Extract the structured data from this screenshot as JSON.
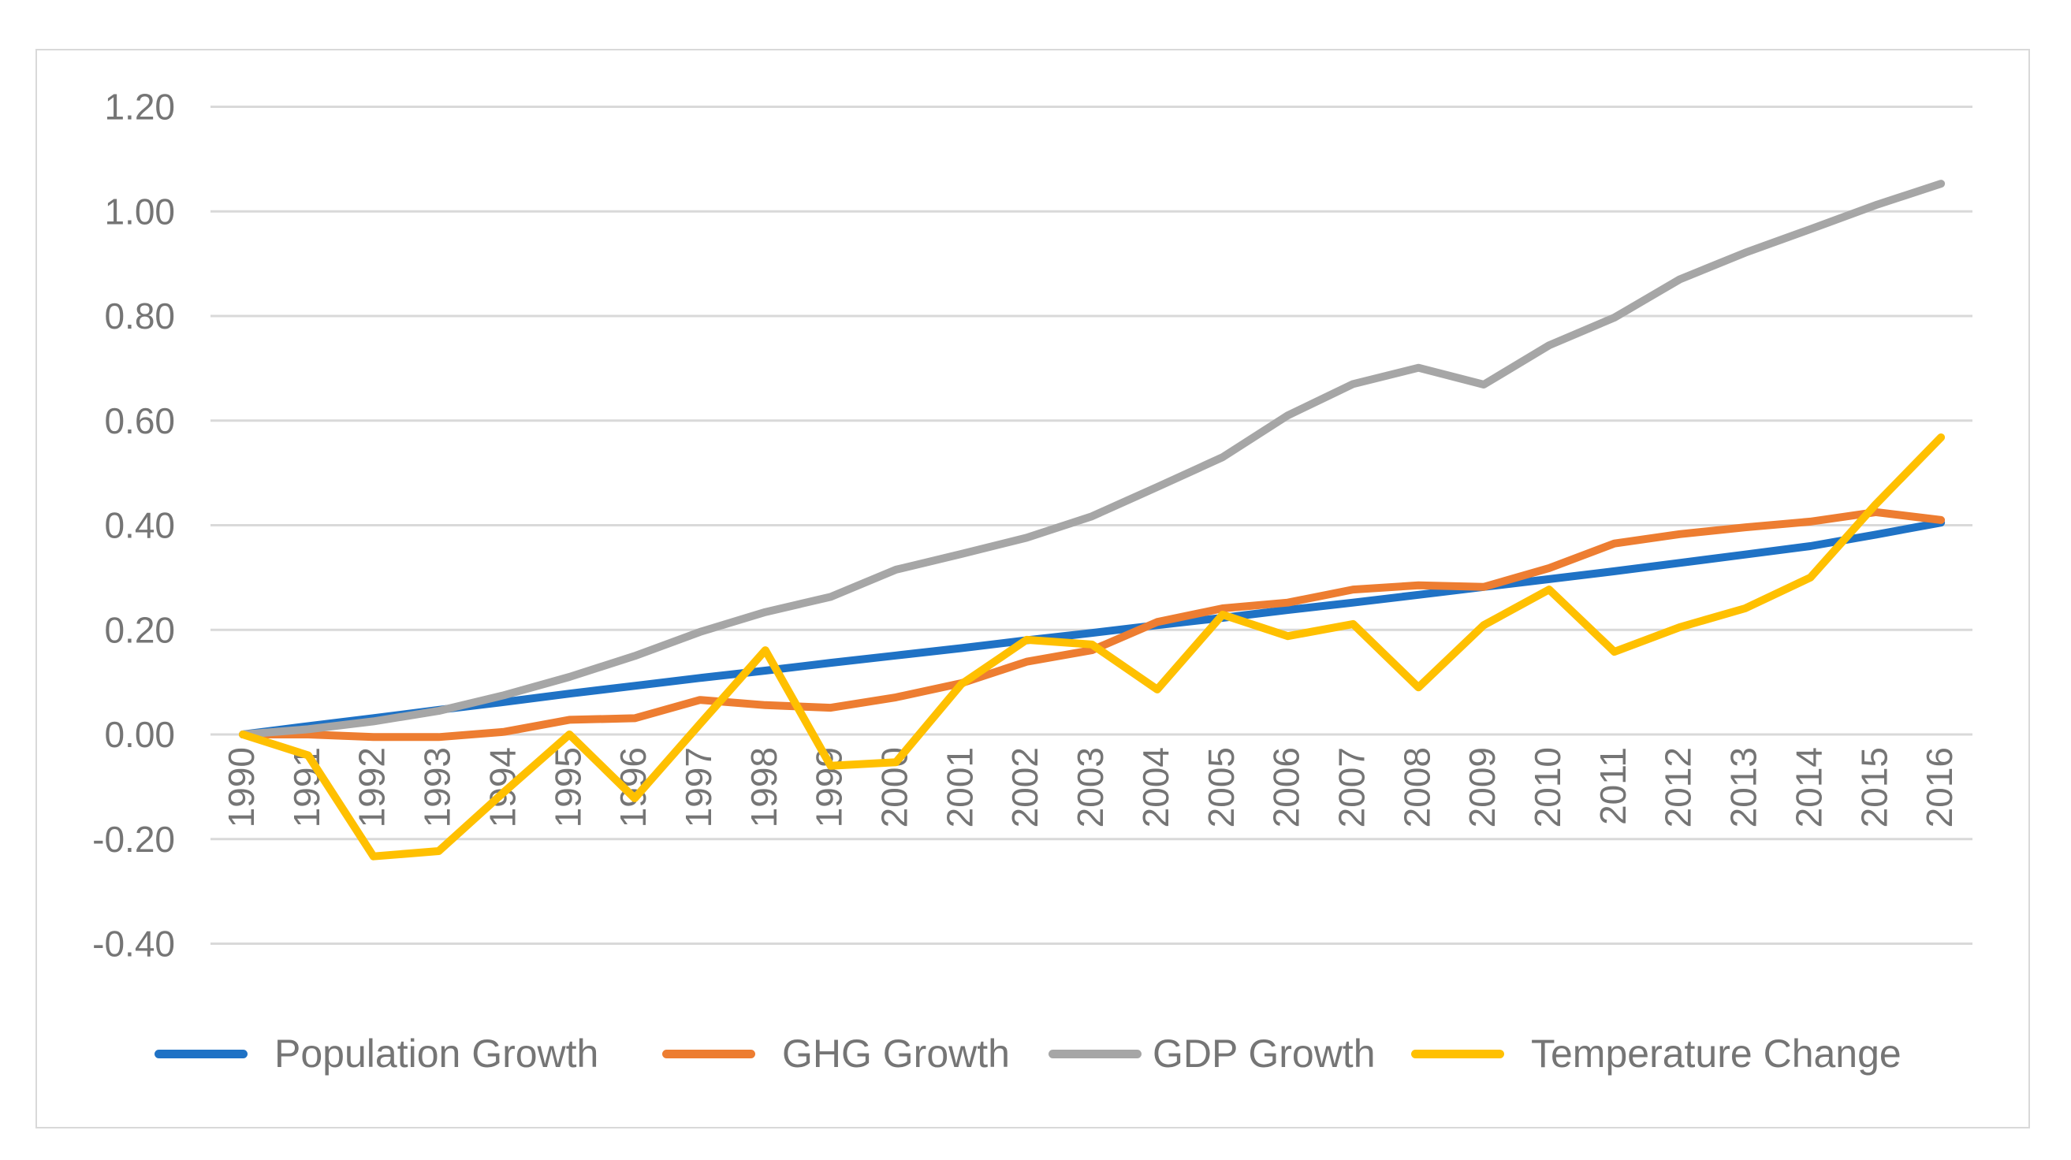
{
  "figure": {
    "background_color": "#ffffff",
    "frame_border_color": "#d9d9d9",
    "gridline_color": "#d9d9d9",
    "text_color": "#757575"
  },
  "chart_data": {
    "type": "line",
    "title": "",
    "xlabel": "",
    "ylabel": "",
    "grid": true,
    "legend_position": "bottom",
    "ylim": [
      -0.4,
      1.2
    ],
    "y_tick_labels": [
      "1.20",
      "1.00",
      "0.80",
      "0.60",
      "0.40",
      "0.20",
      "0.00",
      "-0.20",
      "-0.40"
    ],
    "y_tick_values": [
      1.2,
      1.0,
      0.8,
      0.6,
      0.4,
      0.2,
      0.0,
      -0.2,
      -0.4
    ],
    "categories": [
      "1990",
      "1991",
      "1992",
      "1993",
      "1994",
      "1995",
      "1996",
      "1997",
      "1998",
      "1999",
      "2000",
      "2001",
      "2002",
      "2003",
      "2004",
      "2005",
      "2006",
      "2007",
      "2008",
      "2009",
      "2010",
      "2011",
      "2012",
      "2013",
      "2014",
      "2015",
      "2016"
    ],
    "series": [
      {
        "name": "Population Growth",
        "color": "#1F72C5",
        "values": [
          0.0,
          0.016,
          0.031,
          0.047,
          0.062,
          0.078,
          0.093,
          0.108,
          0.122,
          0.137,
          0.151,
          0.165,
          0.18,
          0.194,
          0.209,
          0.223,
          0.238,
          0.252,
          0.267,
          0.282,
          0.297,
          0.312,
          0.328,
          0.344,
          0.36,
          0.382,
          0.405
        ]
      },
      {
        "name": "GHG Growth",
        "color": "#ED7D31",
        "values": [
          0.0,
          0.0,
          -0.005,
          -0.005,
          0.005,
          0.028,
          0.031,
          0.066,
          0.056,
          0.051,
          0.071,
          0.098,
          0.139,
          0.161,
          0.215,
          0.241,
          0.252,
          0.277,
          0.285,
          0.282,
          0.318,
          0.365,
          0.383,
          0.396,
          0.407,
          0.425,
          0.41
        ]
      },
      {
        "name": "GDP Growth",
        "color": "#A6A6A6",
        "values": [
          0.0,
          0.01,
          0.025,
          0.045,
          0.075,
          0.11,
          0.15,
          0.196,
          0.234,
          0.263,
          0.315,
          0.345,
          0.376,
          0.417,
          0.473,
          0.53,
          0.61,
          0.67,
          0.701,
          0.669,
          0.744,
          0.797,
          0.87,
          0.921,
          0.966,
          1.012,
          1.053
        ]
      },
      {
        "name": "Temperature Change",
        "color": "#FFC000",
        "values": [
          0.0,
          -0.04,
          -0.233,
          -0.223,
          -0.11,
          0.0,
          -0.122,
          0.02,
          0.161,
          -0.06,
          -0.053,
          0.096,
          0.181,
          0.172,
          0.086,
          0.229,
          0.188,
          0.211,
          0.09,
          0.209,
          0.277,
          0.158,
          0.205,
          0.241,
          0.3,
          0.44,
          0.568
        ]
      }
    ]
  },
  "legend": {
    "items": [
      "Population Growth",
      "GHG Growth",
      "GDP Growth",
      "Temperature Change"
    ]
  }
}
